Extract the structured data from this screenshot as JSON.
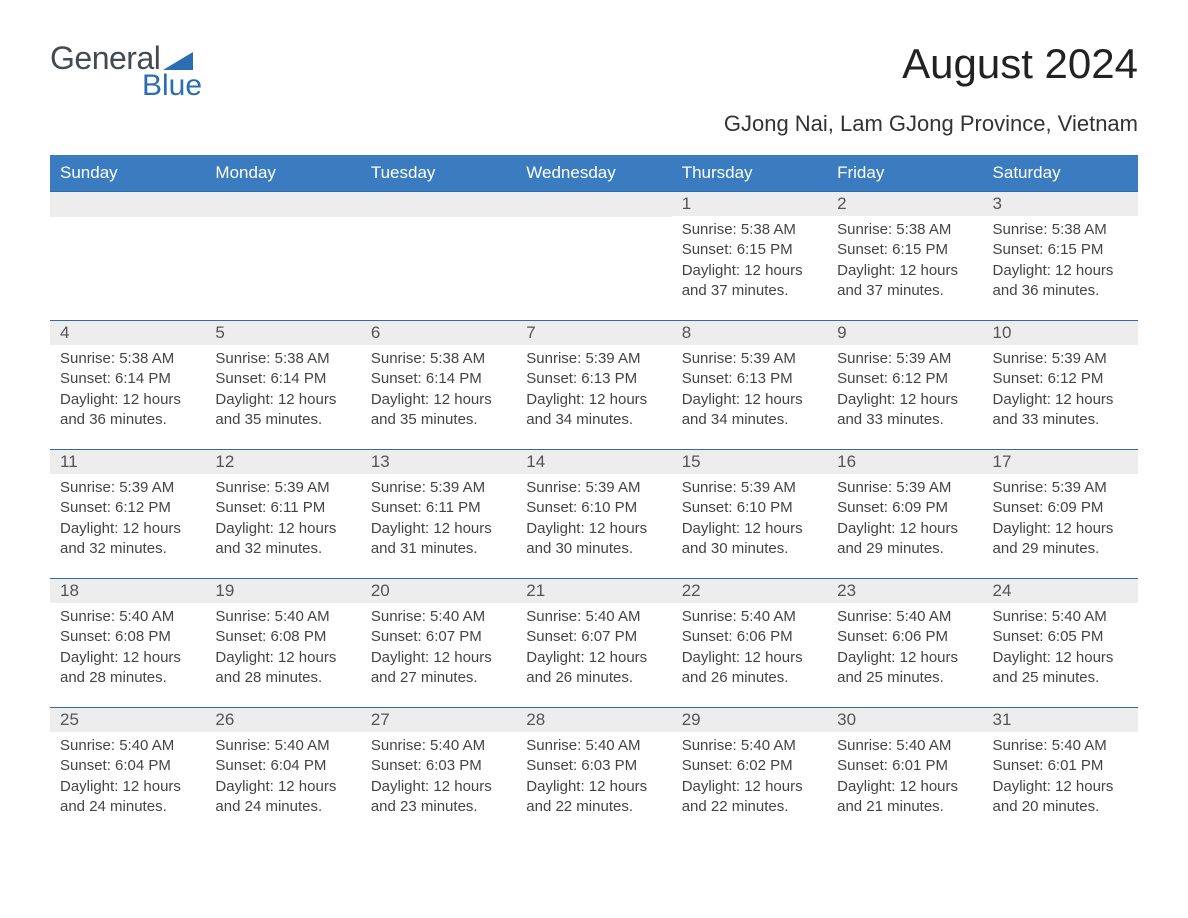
{
  "brand": {
    "word1": "General",
    "word2": "Blue"
  },
  "title": "August 2024",
  "subtitle": "GJong Nai, Lam GJong Province, Vietnam",
  "colors": {
    "header_bg": "#3a7cbf",
    "header_text": "#ffffff",
    "daynum_bg": "#ededed",
    "daynum_text": "#555555",
    "body_text": "#444444",
    "rule": "#2a6db1",
    "brand_gray": "#434a54",
    "brand_blue": "#2a6db1",
    "page_bg": "#ffffff"
  },
  "typography": {
    "title_fontsize": 42,
    "subtitle_fontsize": 22,
    "weekday_fontsize": 17,
    "daynum_fontsize": 17,
    "body_fontsize": 15
  },
  "weekdays": [
    "Sunday",
    "Monday",
    "Tuesday",
    "Wednesday",
    "Thursday",
    "Friday",
    "Saturday"
  ],
  "weeks": [
    [
      {
        "empty": true
      },
      {
        "empty": true
      },
      {
        "empty": true
      },
      {
        "empty": true
      },
      {
        "day": "1",
        "sunrise": "Sunrise: 5:38 AM",
        "sunset": "Sunset: 6:15 PM",
        "daylight": "Daylight: 12 hours and 37 minutes."
      },
      {
        "day": "2",
        "sunrise": "Sunrise: 5:38 AM",
        "sunset": "Sunset: 6:15 PM",
        "daylight": "Daylight: 12 hours and 37 minutes."
      },
      {
        "day": "3",
        "sunrise": "Sunrise: 5:38 AM",
        "sunset": "Sunset: 6:15 PM",
        "daylight": "Daylight: 12 hours and 36 minutes."
      }
    ],
    [
      {
        "day": "4",
        "sunrise": "Sunrise: 5:38 AM",
        "sunset": "Sunset: 6:14 PM",
        "daylight": "Daylight: 12 hours and 36 minutes."
      },
      {
        "day": "5",
        "sunrise": "Sunrise: 5:38 AM",
        "sunset": "Sunset: 6:14 PM",
        "daylight": "Daylight: 12 hours and 35 minutes."
      },
      {
        "day": "6",
        "sunrise": "Sunrise: 5:38 AM",
        "sunset": "Sunset: 6:14 PM",
        "daylight": "Daylight: 12 hours and 35 minutes."
      },
      {
        "day": "7",
        "sunrise": "Sunrise: 5:39 AM",
        "sunset": "Sunset: 6:13 PM",
        "daylight": "Daylight: 12 hours and 34 minutes."
      },
      {
        "day": "8",
        "sunrise": "Sunrise: 5:39 AM",
        "sunset": "Sunset: 6:13 PM",
        "daylight": "Daylight: 12 hours and 34 minutes."
      },
      {
        "day": "9",
        "sunrise": "Sunrise: 5:39 AM",
        "sunset": "Sunset: 6:12 PM",
        "daylight": "Daylight: 12 hours and 33 minutes."
      },
      {
        "day": "10",
        "sunrise": "Sunrise: 5:39 AM",
        "sunset": "Sunset: 6:12 PM",
        "daylight": "Daylight: 12 hours and 33 minutes."
      }
    ],
    [
      {
        "day": "11",
        "sunrise": "Sunrise: 5:39 AM",
        "sunset": "Sunset: 6:12 PM",
        "daylight": "Daylight: 12 hours and 32 minutes."
      },
      {
        "day": "12",
        "sunrise": "Sunrise: 5:39 AM",
        "sunset": "Sunset: 6:11 PM",
        "daylight": "Daylight: 12 hours and 32 minutes."
      },
      {
        "day": "13",
        "sunrise": "Sunrise: 5:39 AM",
        "sunset": "Sunset: 6:11 PM",
        "daylight": "Daylight: 12 hours and 31 minutes."
      },
      {
        "day": "14",
        "sunrise": "Sunrise: 5:39 AM",
        "sunset": "Sunset: 6:10 PM",
        "daylight": "Daylight: 12 hours and 30 minutes."
      },
      {
        "day": "15",
        "sunrise": "Sunrise: 5:39 AM",
        "sunset": "Sunset: 6:10 PM",
        "daylight": "Daylight: 12 hours and 30 minutes."
      },
      {
        "day": "16",
        "sunrise": "Sunrise: 5:39 AM",
        "sunset": "Sunset: 6:09 PM",
        "daylight": "Daylight: 12 hours and 29 minutes."
      },
      {
        "day": "17",
        "sunrise": "Sunrise: 5:39 AM",
        "sunset": "Sunset: 6:09 PM",
        "daylight": "Daylight: 12 hours and 29 minutes."
      }
    ],
    [
      {
        "day": "18",
        "sunrise": "Sunrise: 5:40 AM",
        "sunset": "Sunset: 6:08 PM",
        "daylight": "Daylight: 12 hours and 28 minutes."
      },
      {
        "day": "19",
        "sunrise": "Sunrise: 5:40 AM",
        "sunset": "Sunset: 6:08 PM",
        "daylight": "Daylight: 12 hours and 28 minutes."
      },
      {
        "day": "20",
        "sunrise": "Sunrise: 5:40 AM",
        "sunset": "Sunset: 6:07 PM",
        "daylight": "Daylight: 12 hours and 27 minutes."
      },
      {
        "day": "21",
        "sunrise": "Sunrise: 5:40 AM",
        "sunset": "Sunset: 6:07 PM",
        "daylight": "Daylight: 12 hours and 26 minutes."
      },
      {
        "day": "22",
        "sunrise": "Sunrise: 5:40 AM",
        "sunset": "Sunset: 6:06 PM",
        "daylight": "Daylight: 12 hours and 26 minutes."
      },
      {
        "day": "23",
        "sunrise": "Sunrise: 5:40 AM",
        "sunset": "Sunset: 6:06 PM",
        "daylight": "Daylight: 12 hours and 25 minutes."
      },
      {
        "day": "24",
        "sunrise": "Sunrise: 5:40 AM",
        "sunset": "Sunset: 6:05 PM",
        "daylight": "Daylight: 12 hours and 25 minutes."
      }
    ],
    [
      {
        "day": "25",
        "sunrise": "Sunrise: 5:40 AM",
        "sunset": "Sunset: 6:04 PM",
        "daylight": "Daylight: 12 hours and 24 minutes."
      },
      {
        "day": "26",
        "sunrise": "Sunrise: 5:40 AM",
        "sunset": "Sunset: 6:04 PM",
        "daylight": "Daylight: 12 hours and 24 minutes."
      },
      {
        "day": "27",
        "sunrise": "Sunrise: 5:40 AM",
        "sunset": "Sunset: 6:03 PM",
        "daylight": "Daylight: 12 hours and 23 minutes."
      },
      {
        "day": "28",
        "sunrise": "Sunrise: 5:40 AM",
        "sunset": "Sunset: 6:03 PM",
        "daylight": "Daylight: 12 hours and 22 minutes."
      },
      {
        "day": "29",
        "sunrise": "Sunrise: 5:40 AM",
        "sunset": "Sunset: 6:02 PM",
        "daylight": "Daylight: 12 hours and 22 minutes."
      },
      {
        "day": "30",
        "sunrise": "Sunrise: 5:40 AM",
        "sunset": "Sunset: 6:01 PM",
        "daylight": "Daylight: 12 hours and 21 minutes."
      },
      {
        "day": "31",
        "sunrise": "Sunrise: 5:40 AM",
        "sunset": "Sunset: 6:01 PM",
        "daylight": "Daylight: 12 hours and 20 minutes."
      }
    ]
  ]
}
